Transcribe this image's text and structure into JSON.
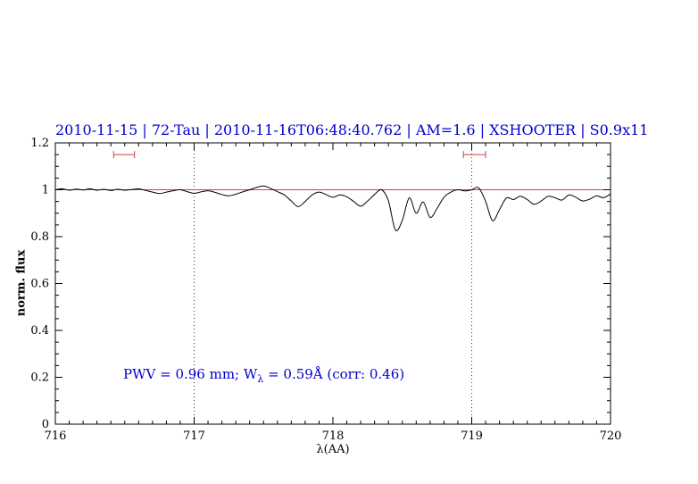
{
  "colors": {
    "title_blue": "#0000cd",
    "annotation_blue": "#0000cd",
    "continuum_red": "#cc4444",
    "marker_red": "#cc4444",
    "spectrum_black": "#000000",
    "axis_black": "#000000",
    "vline_gray": "#333333"
  },
  "chart_data": {
    "type": "line",
    "title": "2010-11-15 | 72-Tau | 2010-11-16T06:48:40.762 | AM=1.6 | XSHOOTER | S0.9x11",
    "xlabel": "λ(AA)",
    "ylabel": "norm. flux",
    "xlim": [
      716,
      720
    ],
    "ylim": [
      0,
      1.2
    ],
    "grid": false,
    "x_ticks": {
      "values": [
        716,
        717,
        718,
        719,
        720
      ],
      "labels": [
        "716",
        "717",
        "718",
        "719",
        "720"
      ]
    },
    "y_ticks": {
      "values": [
        0,
        0.2,
        0.4,
        0.6,
        0.8,
        1,
        1.2
      ],
      "labels": [
        "0",
        "0.2",
        "0.4",
        "0.6",
        "0.8",
        "1",
        "1.2"
      ]
    },
    "x_minor_step": 0.1,
    "y_minor_step": 0.05,
    "vlines": [
      717,
      719
    ],
    "continuum_y": 1.0,
    "range_markers": [
      {
        "x1": 716.42,
        "x2": 716.57,
        "y": 1.15
      },
      {
        "x1": 718.94,
        "x2": 719.1,
        "y": 1.15
      }
    ],
    "annotation": {
      "part1": "PWV = 0.96 mm; W",
      "sub": "λ",
      "part2": " = 0.59Å (corr: 0.46)"
    },
    "series": [
      {
        "name": "normalized spectrum",
        "x": [
          716,
          716.05,
          716.1,
          716.15,
          716.2,
          716.25,
          716.3,
          716.35,
          716.4,
          716.45,
          716.5,
          716.55,
          716.6,
          716.65,
          716.7,
          716.75,
          716.8,
          716.85,
          716.9,
          716.95,
          717,
          717.05,
          717.1,
          717.15,
          717.2,
          717.25,
          717.3,
          717.35,
          717.4,
          717.45,
          717.5,
          717.55,
          717.6,
          717.65,
          717.7,
          717.75,
          717.8,
          717.85,
          717.9,
          717.95,
          718,
          718.05,
          718.1,
          718.15,
          718.2,
          718.25,
          718.3,
          718.35,
          718.4,
          718.45,
          718.5,
          718.55,
          718.6,
          718.65,
          718.7,
          718.75,
          718.8,
          718.85,
          718.9,
          718.95,
          719,
          719.05,
          719.1,
          719.15,
          719.2,
          719.25,
          719.3,
          719.35,
          719.4,
          719.45,
          719.5,
          719.55,
          719.6,
          719.65,
          719.7,
          719.75,
          719.8,
          719.85,
          719.9,
          719.95,
          720
        ],
        "y": [
          1.0,
          1.004,
          0.998,
          1.003,
          0.999,
          1.004,
          0.998,
          1.002,
          0.997,
          1.002,
          0.998,
          1.001,
          1.004,
          0.997,
          0.99,
          0.984,
          0.99,
          0.996,
          1.0,
          0.992,
          0.985,
          0.991,
          0.996,
          0.989,
          0.98,
          0.974,
          0.981,
          0.991,
          1.0,
          1.01,
          1.016,
          1.006,
          0.992,
          0.978,
          0.952,
          0.928,
          0.95,
          0.978,
          0.99,
          0.98,
          0.968,
          0.978,
          0.97,
          0.95,
          0.93,
          0.952,
          0.98,
          1.0,
          0.952,
          0.828,
          0.87,
          0.965,
          0.9,
          0.948,
          0.882,
          0.92,
          0.968,
          0.99,
          1.0,
          0.995,
          1.0,
          1.008,
          0.95,
          0.868,
          0.915,
          0.965,
          0.958,
          0.972,
          0.958,
          0.938,
          0.952,
          0.972,
          0.966,
          0.956,
          0.978,
          0.968,
          0.952,
          0.96,
          0.974,
          0.966,
          0.982
        ]
      }
    ]
  }
}
